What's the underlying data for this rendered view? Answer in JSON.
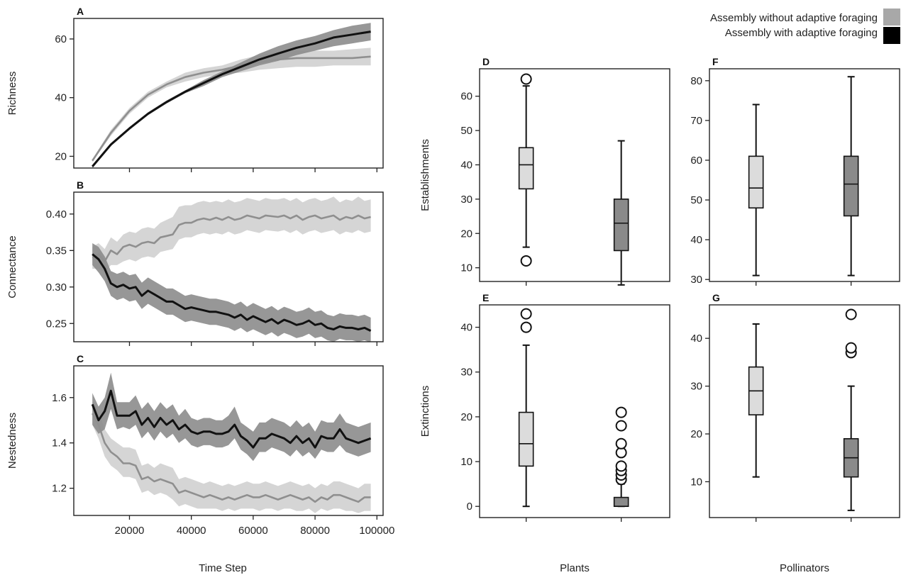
{
  "legend": {
    "position": "top-right",
    "items": [
      {
        "label": "Assembly without adaptive foraging",
        "color": "#a8a8a8"
      },
      {
        "label": "Assembly with adaptive foraging",
        "color": "#000000"
      }
    ]
  },
  "colors": {
    "without_line": "#8f8f8f",
    "without_band": "#d0d0d0",
    "with_line": "#111111",
    "with_band": "#8c8c8c",
    "box_without": "#dcdcdc",
    "box_with": "#8a8a8a"
  },
  "bottom_labels": {
    "time": "Time Step",
    "plants": "Plants",
    "pollinators": "Pollinators"
  },
  "chart_data": [
    {
      "panel": "A",
      "type": "line",
      "ylabel": "Richness",
      "xlim": [
        2000,
        102000
      ],
      "ylim": [
        16,
        67
      ],
      "xticks": [
        20000,
        40000,
        60000,
        80000,
        100000
      ],
      "yticks": [
        20,
        40,
        60
      ],
      "x": [
        8000,
        14000,
        20000,
        26000,
        32000,
        38000,
        44000,
        50000,
        56000,
        62000,
        68000,
        74000,
        80000,
        86000,
        92000,
        98000
      ],
      "series": [
        {
          "name": "Assembly without adaptive foraging",
          "values": [
            18.5,
            28,
            35.5,
            41,
            44.5,
            47,
            48.5,
            49.5,
            51,
            52,
            53,
            53.5,
            53.5,
            53.5,
            53.5,
            54
          ],
          "lower": [
            18,
            27,
            34.5,
            40,
            43.5,
            45.5,
            47,
            48,
            48.5,
            49.5,
            50,
            50.5,
            50.5,
            51,
            51,
            51
          ],
          "upper": [
            19,
            29,
            36.5,
            42,
            45.5,
            48.5,
            50,
            51,
            53,
            54.5,
            55.5,
            56,
            56,
            56,
            56.5,
            57
          ]
        },
        {
          "name": "Assembly with adaptive foraging",
          "values": [
            16.5,
            24,
            29.5,
            34.5,
            38.5,
            42,
            45,
            48,
            50.5,
            53,
            55,
            57,
            58.5,
            60.5,
            61.5,
            62.5
          ],
          "lower": [
            16,
            23.5,
            29,
            34,
            38,
            41.5,
            44,
            47,
            49,
            51,
            52.5,
            54.5,
            56,
            57.5,
            58.5,
            59.5
          ],
          "upper": [
            17,
            24.5,
            30,
            35,
            39,
            42.5,
            46,
            49,
            52,
            55,
            57.5,
            59.5,
            61,
            63,
            64.5,
            65.5
          ]
        }
      ]
    },
    {
      "panel": "B",
      "type": "line",
      "ylabel": "Connectance",
      "xlim": [
        2000,
        102000
      ],
      "ylim": [
        0.225,
        0.43
      ],
      "xticks": [
        20000,
        40000,
        60000,
        80000,
        100000
      ],
      "yticks": [
        0.25,
        0.3,
        0.35,
        0.4
      ],
      "x": [
        8000,
        10000,
        12000,
        14000,
        16000,
        18000,
        20000,
        22000,
        24000,
        26000,
        28000,
        30000,
        32000,
        34000,
        36000,
        38000,
        40000,
        42000,
        44000,
        46000,
        48000,
        50000,
        52000,
        54000,
        56000,
        58000,
        60000,
        62000,
        64000,
        66000,
        68000,
        70000,
        72000,
        74000,
        76000,
        78000,
        80000,
        82000,
        84000,
        86000,
        88000,
        90000,
        92000,
        94000,
        96000,
        98000
      ],
      "series": [
        {
          "name": "Assembly without adaptive foraging",
          "values": [
            0.34,
            0.345,
            0.335,
            0.35,
            0.345,
            0.355,
            0.358,
            0.355,
            0.36,
            0.362,
            0.36,
            0.368,
            0.37,
            0.372,
            0.385,
            0.388,
            0.388,
            0.392,
            0.394,
            0.392,
            0.395,
            0.392,
            0.396,
            0.392,
            0.394,
            0.398,
            0.396,
            0.394,
            0.398,
            0.397,
            0.396,
            0.398,
            0.394,
            0.398,
            0.392,
            0.396,
            0.398,
            0.394,
            0.396,
            0.398,
            0.392,
            0.396,
            0.394,
            0.398,
            0.394,
            0.396
          ],
          "lower": [
            0.325,
            0.325,
            0.32,
            0.33,
            0.33,
            0.335,
            0.338,
            0.335,
            0.34,
            0.342,
            0.34,
            0.348,
            0.35,
            0.352,
            0.365,
            0.368,
            0.368,
            0.372,
            0.374,
            0.372,
            0.374,
            0.372,
            0.376,
            0.372,
            0.374,
            0.378,
            0.376,
            0.374,
            0.378,
            0.377,
            0.376,
            0.378,
            0.374,
            0.378,
            0.372,
            0.376,
            0.378,
            0.374,
            0.376,
            0.378,
            0.372,
            0.376,
            0.374,
            0.378,
            0.374,
            0.376
          ],
          "upper": [
            0.355,
            0.36,
            0.352,
            0.368,
            0.362,
            0.372,
            0.376,
            0.374,
            0.38,
            0.382,
            0.38,
            0.388,
            0.392,
            0.396,
            0.41,
            0.412,
            0.412,
            0.416,
            0.418,
            0.416,
            0.418,
            0.416,
            0.42,
            0.416,
            0.418,
            0.422,
            0.42,
            0.418,
            0.422,
            0.42,
            0.42,
            0.422,
            0.418,
            0.422,
            0.416,
            0.42,
            0.422,
            0.418,
            0.42,
            0.424,
            0.416,
            0.42,
            0.418,
            0.424,
            0.418,
            0.42
          ]
        },
        {
          "name": "Assembly with adaptive foraging",
          "values": [
            0.345,
            0.338,
            0.325,
            0.305,
            0.3,
            0.303,
            0.298,
            0.3,
            0.288,
            0.295,
            0.29,
            0.285,
            0.28,
            0.28,
            0.275,
            0.27,
            0.272,
            0.27,
            0.268,
            0.266,
            0.266,
            0.264,
            0.262,
            0.258,
            0.262,
            0.255,
            0.26,
            0.256,
            0.252,
            0.256,
            0.25,
            0.255,
            0.252,
            0.248,
            0.25,
            0.254,
            0.248,
            0.25,
            0.244,
            0.242,
            0.246,
            0.244,
            0.244,
            0.242,
            0.244,
            0.24
          ],
          "lower": [
            0.33,
            0.32,
            0.308,
            0.288,
            0.282,
            0.285,
            0.28,
            0.282,
            0.27,
            0.277,
            0.272,
            0.267,
            0.262,
            0.262,
            0.257,
            0.252,
            0.254,
            0.252,
            0.25,
            0.248,
            0.248,
            0.246,
            0.244,
            0.24,
            0.244,
            0.238,
            0.242,
            0.238,
            0.234,
            0.238,
            0.232,
            0.237,
            0.234,
            0.23,
            0.232,
            0.236,
            0.23,
            0.232,
            0.227,
            0.225,
            0.229,
            0.227,
            0.227,
            0.225,
            0.227,
            0.224
          ],
          "upper": [
            0.36,
            0.355,
            0.342,
            0.322,
            0.318,
            0.321,
            0.316,
            0.318,
            0.306,
            0.313,
            0.308,
            0.303,
            0.298,
            0.298,
            0.293,
            0.288,
            0.29,
            0.288,
            0.286,
            0.284,
            0.284,
            0.282,
            0.28,
            0.276,
            0.28,
            0.273,
            0.278,
            0.274,
            0.27,
            0.274,
            0.268,
            0.273,
            0.27,
            0.266,
            0.268,
            0.272,
            0.266,
            0.268,
            0.262,
            0.26,
            0.264,
            0.262,
            0.262,
            0.26,
            0.262,
            0.258
          ]
        }
      ]
    },
    {
      "panel": "C",
      "type": "line",
      "ylabel": "Nestedness",
      "xlabel": "Time Step",
      "xlim": [
        2000,
        102000
      ],
      "ylim": [
        1.08,
        1.74
      ],
      "xticks": [
        20000,
        40000,
        60000,
        80000,
        100000
      ],
      "yticks": [
        1.2,
        1.4,
        1.6
      ],
      "x": [
        8000,
        10000,
        12000,
        14000,
        16000,
        18000,
        20000,
        22000,
        24000,
        26000,
        28000,
        30000,
        32000,
        34000,
        36000,
        38000,
        40000,
        42000,
        44000,
        46000,
        48000,
        50000,
        52000,
        54000,
        56000,
        58000,
        60000,
        62000,
        64000,
        66000,
        68000,
        70000,
        72000,
        74000,
        76000,
        78000,
        80000,
        82000,
        84000,
        86000,
        88000,
        90000,
        92000,
        94000,
        96000,
        98000
      ],
      "series": [
        {
          "name": "Assembly without adaptive foraging",
          "values": [
            1.53,
            1.48,
            1.4,
            1.36,
            1.34,
            1.31,
            1.31,
            1.3,
            1.24,
            1.25,
            1.23,
            1.24,
            1.23,
            1.22,
            1.18,
            1.19,
            1.18,
            1.17,
            1.16,
            1.17,
            1.16,
            1.15,
            1.16,
            1.15,
            1.16,
            1.17,
            1.16,
            1.16,
            1.17,
            1.16,
            1.15,
            1.16,
            1.17,
            1.16,
            1.15,
            1.16,
            1.14,
            1.16,
            1.15,
            1.17,
            1.17,
            1.16,
            1.15,
            1.14,
            1.16,
            1.16
          ],
          "lower": [
            1.48,
            1.42,
            1.34,
            1.3,
            1.28,
            1.25,
            1.25,
            1.24,
            1.18,
            1.19,
            1.17,
            1.18,
            1.17,
            1.15,
            1.12,
            1.13,
            1.12,
            1.11,
            1.11,
            1.11,
            1.11,
            1.1,
            1.11,
            1.1,
            1.11,
            1.11,
            1.11,
            1.1,
            1.11,
            1.11,
            1.1,
            1.11,
            1.11,
            1.1,
            1.1,
            1.11,
            1.09,
            1.11,
            1.1,
            1.11,
            1.11,
            1.1,
            1.1,
            1.09,
            1.1,
            1.1
          ],
          "upper": [
            1.58,
            1.54,
            1.46,
            1.42,
            1.4,
            1.38,
            1.38,
            1.37,
            1.3,
            1.31,
            1.29,
            1.31,
            1.3,
            1.29,
            1.24,
            1.25,
            1.24,
            1.23,
            1.22,
            1.23,
            1.22,
            1.21,
            1.22,
            1.21,
            1.22,
            1.23,
            1.22,
            1.22,
            1.23,
            1.22,
            1.21,
            1.22,
            1.23,
            1.22,
            1.21,
            1.22,
            1.2,
            1.22,
            1.21,
            1.23,
            1.23,
            1.22,
            1.21,
            1.2,
            1.22,
            1.22
          ]
        },
        {
          "name": "Assembly with adaptive foraging",
          "values": [
            1.57,
            1.5,
            1.54,
            1.63,
            1.52,
            1.52,
            1.52,
            1.54,
            1.48,
            1.51,
            1.47,
            1.51,
            1.48,
            1.5,
            1.46,
            1.48,
            1.45,
            1.44,
            1.45,
            1.45,
            1.44,
            1.44,
            1.45,
            1.48,
            1.43,
            1.41,
            1.38,
            1.42,
            1.42,
            1.44,
            1.43,
            1.42,
            1.4,
            1.43,
            1.4,
            1.42,
            1.38,
            1.43,
            1.42,
            1.42,
            1.46,
            1.42,
            1.41,
            1.4,
            1.41,
            1.42
          ],
          "lower": [
            1.48,
            1.44,
            1.46,
            1.55,
            1.46,
            1.47,
            1.46,
            1.48,
            1.42,
            1.45,
            1.41,
            1.45,
            1.42,
            1.44,
            1.4,
            1.42,
            1.39,
            1.38,
            1.39,
            1.39,
            1.38,
            1.38,
            1.39,
            1.42,
            1.37,
            1.35,
            1.32,
            1.36,
            1.36,
            1.38,
            1.37,
            1.36,
            1.34,
            1.37,
            1.34,
            1.36,
            1.33,
            1.37,
            1.36,
            1.36,
            1.39,
            1.36,
            1.35,
            1.34,
            1.35,
            1.36
          ],
          "upper": [
            1.62,
            1.56,
            1.6,
            1.71,
            1.58,
            1.58,
            1.58,
            1.61,
            1.55,
            1.58,
            1.54,
            1.58,
            1.55,
            1.57,
            1.52,
            1.55,
            1.51,
            1.5,
            1.51,
            1.51,
            1.5,
            1.5,
            1.52,
            1.56,
            1.49,
            1.47,
            1.45,
            1.49,
            1.49,
            1.51,
            1.5,
            1.49,
            1.47,
            1.5,
            1.47,
            1.49,
            1.45,
            1.5,
            1.49,
            1.49,
            1.53,
            1.49,
            1.48,
            1.47,
            1.48,
            1.49
          ]
        }
      ]
    },
    {
      "panel": "D",
      "type": "box",
      "ylabel": "Establishments",
      "group": "Plants",
      "ylim": [
        6,
        68
      ],
      "yticks": [
        10,
        20,
        30,
        40,
        50,
        60
      ],
      "boxes": [
        {
          "name": "Assembly without adaptive foraging",
          "whisker_low": 16,
          "q1": 33,
          "median": 40,
          "q3": 45,
          "whisker_high": 63,
          "outliers": [
            12,
            65
          ]
        },
        {
          "name": "Assembly with adaptive foraging",
          "whisker_low": 5,
          "q1": 15,
          "median": 23,
          "q3": 30,
          "whisker_high": 47,
          "outliers": []
        }
      ]
    },
    {
      "panel": "E",
      "type": "box",
      "ylabel": "Extinctions",
      "group": "Plants",
      "ylim": [
        -2.5,
        45
      ],
      "yticks": [
        0,
        10,
        20,
        30,
        40
      ],
      "boxes": [
        {
          "name": "Assembly without adaptive foraging",
          "whisker_low": 0,
          "q1": 9,
          "median": 14,
          "q3": 21,
          "whisker_high": 36,
          "outliers": [
            40,
            43
          ]
        },
        {
          "name": "Assembly with adaptive foraging",
          "whisker_low": 0,
          "q1": 0,
          "median": 0,
          "q3": 2,
          "whisker_high": 5,
          "outliers": [
            6,
            7,
            8,
            9,
            12,
            14,
            18,
            21
          ]
        }
      ]
    },
    {
      "panel": "F",
      "type": "box",
      "group": "Pollinators",
      "ylim": [
        29.5,
        83
      ],
      "yticks": [
        30,
        40,
        50,
        60,
        70,
        80
      ],
      "boxes": [
        {
          "name": "Assembly without adaptive foraging",
          "whisker_low": 31,
          "q1": 48,
          "median": 53,
          "q3": 61,
          "whisker_high": 74,
          "outliers": []
        },
        {
          "name": "Assembly with adaptive foraging",
          "whisker_low": 31,
          "q1": 46,
          "median": 54,
          "q3": 61,
          "whisker_high": 81,
          "outliers": []
        }
      ]
    },
    {
      "panel": "G",
      "type": "box",
      "group": "Pollinators",
      "ylim": [
        2.5,
        47
      ],
      "yticks": [
        10,
        20,
        30,
        40
      ],
      "boxes": [
        {
          "name": "Assembly without adaptive foraging",
          "whisker_low": 11,
          "q1": 24,
          "median": 29,
          "q3": 34,
          "whisker_high": 43,
          "outliers": []
        },
        {
          "name": "Assembly with adaptive foraging",
          "whisker_low": 4,
          "q1": 11,
          "median": 15,
          "q3": 19,
          "whisker_high": 30,
          "outliers": [
            37,
            38,
            45
          ]
        }
      ]
    }
  ]
}
